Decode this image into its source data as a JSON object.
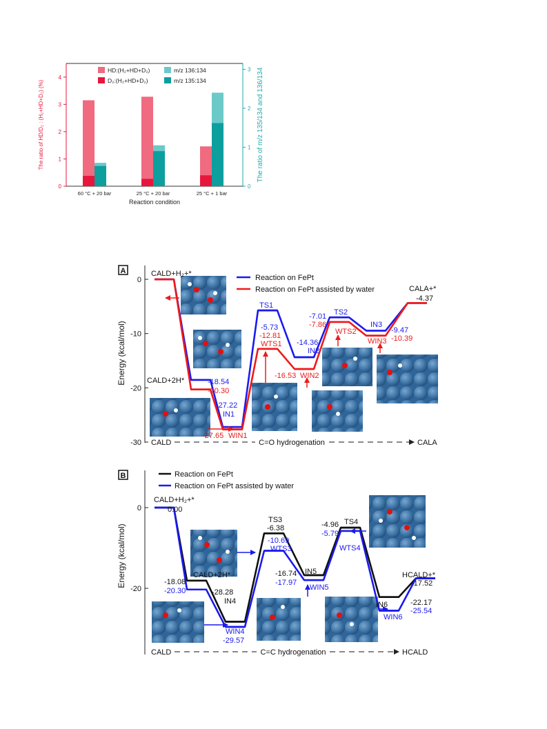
{
  "bar_chart": {
    "left_axis_label": "The ratio of HD/D₂ : (H₂+HD+D₂) (%)",
    "right_axis_label": "The ratio of m/z 135/134 and 136/134",
    "xlabel": "Reaction condition",
    "legend": {
      "hd": "HD:(H₂+HD+D₂)",
      "d2": "D₂:(H₂+HD+D₂)",
      "m136": "m/z 136:134",
      "m135": "m/z 135:134"
    },
    "colors": {
      "hd": "#f06a80",
      "d2": "#e8163c",
      "m136": "#6cc9c9",
      "m135": "#0d9e9e",
      "left_axis": "#e8163c",
      "right_axis": "#22aaaa"
    },
    "left_ticks": [
      "0",
      "1",
      "2",
      "3",
      "4"
    ],
    "right_ticks": [
      "0",
      "1",
      "2",
      "3"
    ]
  },
  "panel_a": {
    "label": "A",
    "legend_blue": "Reaction on FePt",
    "legend_red": "Reaction on FePt assisted by water",
    "ylabel": "Energy (kcal/mol)",
    "yticks": [
      "0",
      "-10",
      "-20",
      "-30"
    ],
    "start_label": "CALD",
    "mid_label": "C=O hydrogenation",
    "end_label": "CALA",
    "species": {
      "cald_h2": "CALD+H₂+*",
      "cald_2h": "CALD+2H*",
      "in1": "IN1",
      "win1": "WIN1",
      "ts1": "TS1",
      "wts1": "WTS1",
      "in2": "IN2",
      "win2": "WIN2",
      "ts2": "TS2",
      "wts2": "WTS2",
      "in3": "IN3",
      "win3": "WIN3",
      "cala": "CALA+*"
    },
    "values": {
      "b_2h": "-18.54",
      "r_2h": "-20.30",
      "b_in1": "-27.22",
      "r_win1": "-27.65",
      "b_ts1": "-5.73",
      "r_wts1": "-12.81",
      "b_in2": "-14.36",
      "r_win2": "-16.53",
      "b_ts2": "-7.01",
      "r_wts2": "-7.86",
      "b_in3": "-9.47",
      "r_win3": "-10.39",
      "end": "-4.37"
    }
  },
  "panel_b": {
    "label": "B",
    "legend_black": "Reaction on FePt",
    "legend_blue": "Reaction on FePt assisted by water",
    "ylabel": "Energy (kcal/mol)",
    "yticks": [
      "0",
      "-20"
    ],
    "start_label": "CALD",
    "mid_label": "C=C hydrogenation",
    "end_label": "HCALD",
    "species": {
      "cald_h2": "CALD+H₂+*",
      "cald_2h": "CALD+2H*",
      "in4": "IN4",
      "win4": "WIN4",
      "ts3": "TS3",
      "wts3": "WTS3",
      "in5": "IN5",
      "win5": "WIN5",
      "ts4": "TS4",
      "wts4": "WTS4",
      "in6": "IN6",
      "win6": "WIN6",
      "hcald": "HCALD+*"
    },
    "values": {
      "start": "0.00",
      "k_2h": "-18.08",
      "b_2h": "-20.30",
      "k_in4": "-28.28",
      "b_win4": "-29.57",
      "k_ts3": "-6.38",
      "b_wts3": "-10.69",
      "k_in5": "-16.74",
      "b_win5": "-17.97",
      "k_ts4": "-4.96",
      "b_wts4": "-5.79",
      "k_in6": "-22.17",
      "b_win6": "-25.54",
      "end": "-17.52"
    }
  },
  "chart_data": [
    {
      "type": "bar",
      "title": "",
      "xlabel": "Reaction condition",
      "ylabel": "The ratio of HD/D₂ : (H₂+HD+D₂) (%)",
      "y2label": "The ratio of m/z 135/134 and 136/134",
      "categories": [
        "60 °C + 20 bar",
        "25 °C + 20 bar",
        "25 °C + 1 bar"
      ],
      "series": [
        {
          "name": "HD:(H₂+HD+D₂)",
          "axis": "left",
          "values": [
            3.15,
            3.28,
            1.46
          ]
        },
        {
          "name": "D₂:(H₂+HD+D₂)",
          "axis": "left",
          "values": [
            0.38,
            0.27,
            0.4
          ]
        },
        {
          "name": "m/z 136:134",
          "axis": "right",
          "values": [
            0.6,
            1.05,
            2.4
          ]
        },
        {
          "name": "m/z 135:134",
          "axis": "right",
          "values": [
            0.52,
            0.9,
            1.62
          ]
        }
      ],
      "ylim": [
        0,
        4.5
      ],
      "y2lim": [
        0,
        3.15
      ],
      "legend": "top-left"
    },
    {
      "type": "line",
      "panel": "A",
      "ylabel": "Energy (kcal/mol)",
      "ylim": [
        -30,
        2
      ],
      "series": [
        {
          "name": "Reaction on FePt",
          "color": "#1a1aee",
          "points": [
            {
              "x": 0,
              "y": 0
            },
            {
              "x": 1,
              "y": -18.54
            },
            {
              "x": 2,
              "y": -27.22
            },
            {
              "x": 3,
              "y": -5.73
            },
            {
              "x": 4,
              "y": -14.36
            },
            {
              "x": 5,
              "y": -7.01
            },
            {
              "x": 6,
              "y": -9.47
            },
            {
              "x": 7,
              "y": -4.37
            }
          ]
        },
        {
          "name": "Reaction on FePt assisted by water",
          "color": "#ee1a1a",
          "points": [
            {
              "x": 0,
              "y": 0
            },
            {
              "x": 1,
              "y": -20.3
            },
            {
              "x": 2,
              "y": -27.65
            },
            {
              "x": 3,
              "y": -12.81
            },
            {
              "x": 4,
              "y": -16.53
            },
            {
              "x": 5,
              "y": -7.86
            },
            {
              "x": 6,
              "y": -10.39
            },
            {
              "x": 7,
              "y": -4.37
            }
          ]
        }
      ]
    },
    {
      "type": "line",
      "panel": "B",
      "ylabel": "Energy (kcal/mol)",
      "ylim": [
        -32,
        7
      ],
      "series": [
        {
          "name": "Reaction on FePt",
          "color": "#111111",
          "points": [
            {
              "x": 0,
              "y": 0
            },
            {
              "x": 1,
              "y": -18.08
            },
            {
              "x": 2,
              "y": -28.28
            },
            {
              "x": 3,
              "y": -6.38
            },
            {
              "x": 4,
              "y": -16.74
            },
            {
              "x": 5,
              "y": -4.96
            },
            {
              "x": 6,
              "y": -22.17
            },
            {
              "x": 7,
              "y": -17.52
            }
          ]
        },
        {
          "name": "Reaction on FePt assisted by water",
          "color": "#1a1aee",
          "points": [
            {
              "x": 0,
              "y": 0
            },
            {
              "x": 1,
              "y": -20.3
            },
            {
              "x": 2,
              "y": -29.57
            },
            {
              "x": 3,
              "y": -10.69
            },
            {
              "x": 4,
              "y": -17.97
            },
            {
              "x": 5,
              "y": -5.79
            },
            {
              "x": 6,
              "y": -25.54
            },
            {
              "x": 7,
              "y": -17.52
            }
          ]
        }
      ]
    }
  ]
}
